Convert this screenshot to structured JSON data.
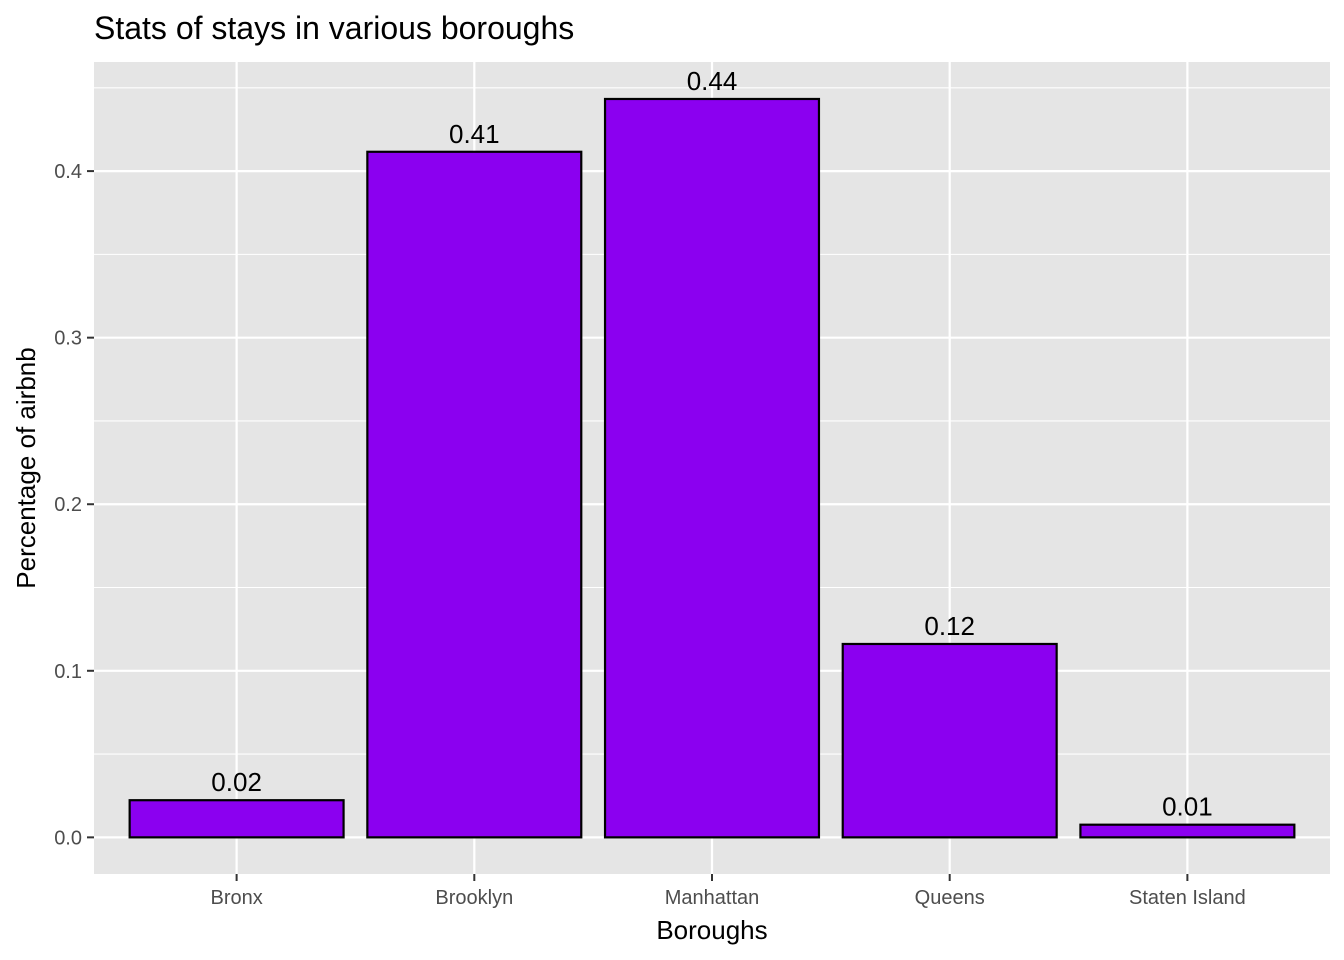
{
  "chart_data": {
    "type": "bar",
    "title": "Stats of stays in various boroughs",
    "xlabel": "Boroughs",
    "ylabel": "Percentage of airbnb",
    "categories": [
      "Bronx",
      "Brooklyn",
      "Manhattan",
      "Queens",
      "Staten Island"
    ],
    "values": [
      0.0223,
      0.4116,
      0.4433,
      0.1161,
      0.0076
    ],
    "data_labels": [
      "0.02",
      "0.41",
      "0.44",
      "0.12",
      "0.01"
    ],
    "ylim": [
      -0.022,
      0.4655
    ],
    "yticks": [
      0.0,
      0.1,
      0.2,
      0.3,
      0.4
    ],
    "ytick_labels": [
      "0.0",
      "0.1",
      "0.2",
      "0.3",
      "0.4"
    ],
    "grid": true,
    "legend": false,
    "colors": {
      "bar_fill": "#8B00F0",
      "bar_stroke": "#000000",
      "panel_background": "#E5E5E5",
      "grid_major": "#FFFFFF",
      "tick_text": "#4D4D4D"
    }
  }
}
